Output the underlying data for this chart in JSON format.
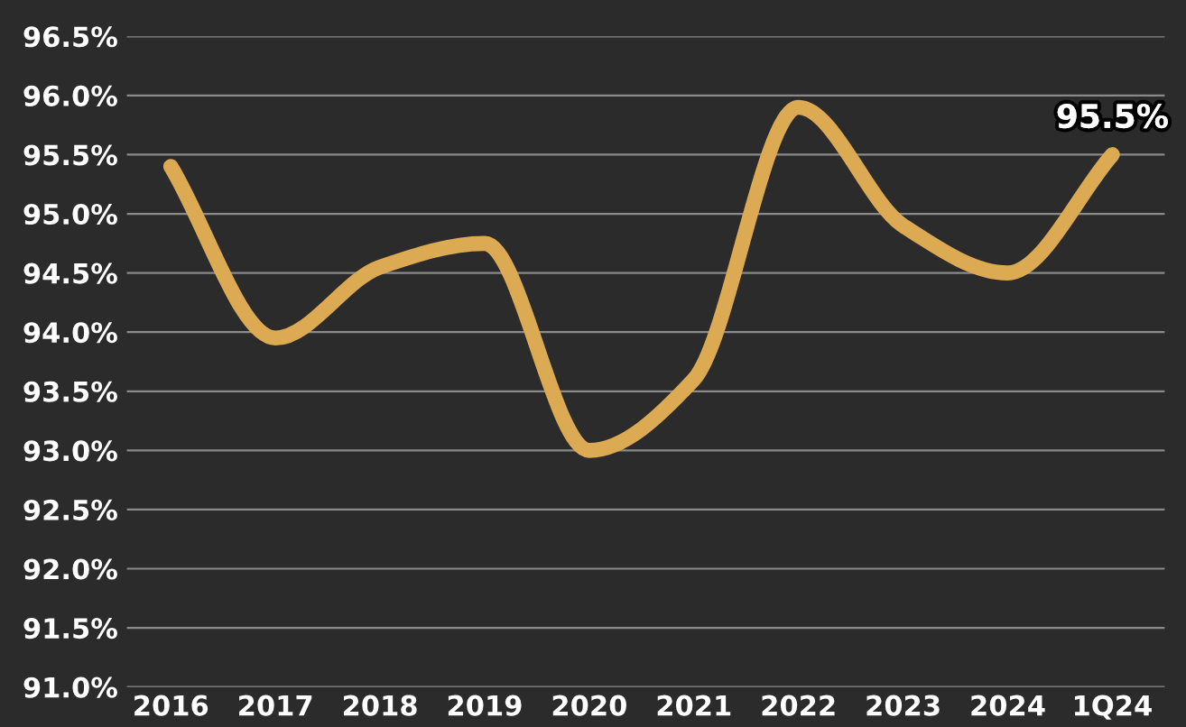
{
  "chart_data": {
    "type": "line",
    "categories": [
      "2016",
      "2017",
      "2018",
      "2019",
      "2020",
      "2021",
      "2022",
      "2023",
      "2024",
      "1Q24"
    ],
    "series": [
      {
        "color": "#dcaa52",
        "values": [
          95.4,
          93.95,
          94.55,
          94.75,
          93.0,
          93.6,
          95.9,
          94.9,
          94.5,
          95.5
        ],
        "value_labels": [
          null,
          null,
          null,
          null,
          null,
          null,
          null,
          null,
          null,
          "95.5%"
        ]
      }
    ],
    "ylim": [
      91.0,
      96.5
    ],
    "yticks": [
      {
        "value": 91.0,
        "label": "91.0%"
      },
      {
        "value": 91.5,
        "label": "91.5%"
      },
      {
        "value": 92.0,
        "label": "92.0%"
      },
      {
        "value": 92.5,
        "label": "92.5%"
      },
      {
        "value": 93.0,
        "label": "93.0%"
      },
      {
        "value": 93.5,
        "label": "93.5%"
      },
      {
        "value": 94.0,
        "label": "94.0%"
      },
      {
        "value": 94.5,
        "label": "94.5%"
      },
      {
        "value": 95.0,
        "label": "95.0%"
      },
      {
        "value": 95.5,
        "label": "95.5%"
      },
      {
        "value": 96.0,
        "label": "96.0%"
      },
      {
        "value": 96.5,
        "label": "96.5%"
      }
    ],
    "grid": "y",
    "marker": "none",
    "line_style": "solid"
  }
}
